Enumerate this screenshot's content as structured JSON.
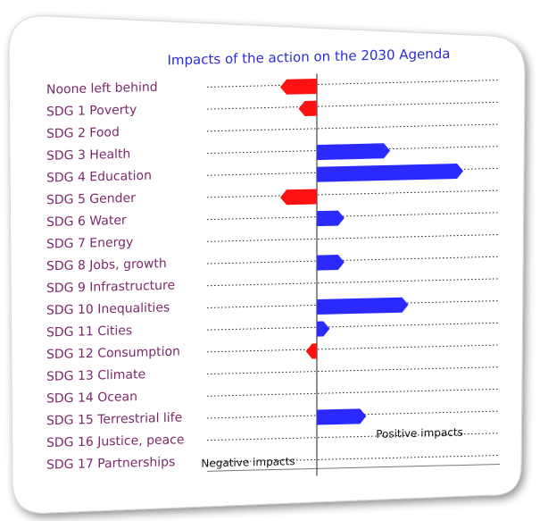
{
  "chart_data": {
    "type": "bar",
    "orientation": "horizontal",
    "title": "Impacts of the action on the 2030 Agenda",
    "negative_label": "Negative impacts",
    "positive_label": "Positive impacts",
    "categories": [
      "Noone left behind",
      "SDG 1 Poverty",
      "SDG 2 Food",
      "SDG 3 Health",
      "SDG 4 Education",
      "SDG 5 Gender",
      "SDG 6 Water",
      "SDG 7 Energy",
      "SDG 8 Jobs, growth",
      "SDG 9 Infrastructure",
      "SDG 10 Inequalities",
      "SDG 11 Cities",
      "SDG 12 Consumption",
      "SDG 13 Climate",
      "SDG 14 Ocean",
      "SDG 15 Terrestrial life",
      "SDG 16 Justice, peace",
      "SDG 17 Partnerships"
    ],
    "values": [
      -2,
      -1,
      0,
      4,
      8,
      -2,
      1.5,
      0,
      1.5,
      0,
      5,
      0.7,
      -0.6,
      0,
      0,
      2.7,
      0,
      0
    ],
    "xlim": [
      -6,
      10
    ],
    "grid": true,
    "colors": {
      "positive": "#2a2aff",
      "negative": "#ff1111",
      "title": "#2c2cd6",
      "categories": "#7a2a6a"
    }
  }
}
